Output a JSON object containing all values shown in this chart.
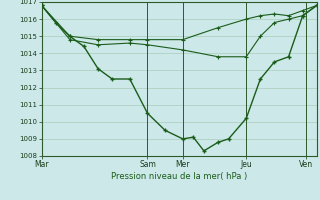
{
  "xlabel": "Pression niveau de la mer( hPa )",
  "bg_color": "#cce8e8",
  "grid_color": "#aaccbb",
  "line_color": "#1a5c1a",
  "ylim": [
    1008,
    1017
  ],
  "yticks": [
    1008,
    1009,
    1010,
    1011,
    1012,
    1013,
    1014,
    1015,
    1016,
    1017
  ],
  "xtick_labels": [
    "Mar",
    "Sam",
    "Mer",
    "Jeu",
    "Ven"
  ],
  "xtick_positions": [
    0,
    3.0,
    4.0,
    5.8,
    7.5
  ],
  "day_lines": [
    0,
    3.0,
    4.0,
    5.8,
    7.5
  ],
  "xlim": [
    0,
    7.8
  ],
  "series1_main": {
    "x": [
      0.0,
      0.4,
      0.8,
      1.2,
      1.6,
      2.0,
      2.5,
      3.0,
      3.5,
      4.0,
      4.3,
      4.6,
      5.0,
      5.3,
      5.8,
      6.2,
      6.6,
      7.0,
      7.4,
      7.8
    ],
    "y": [
      1016.8,
      1015.8,
      1015.0,
      1014.4,
      1013.1,
      1012.5,
      1012.5,
      1010.5,
      1009.5,
      1009.0,
      1009.1,
      1008.3,
      1008.8,
      1009.0,
      1010.2,
      1012.5,
      1013.5,
      1013.8,
      1016.2,
      1016.8
    ]
  },
  "series2_upper": {
    "x": [
      0.0,
      0.8,
      1.6,
      2.5,
      3.0,
      4.0,
      5.0,
      5.8,
      6.2,
      6.6,
      7.0,
      7.4,
      7.8
    ],
    "y": [
      1016.8,
      1015.0,
      1014.8,
      1014.8,
      1014.8,
      1014.8,
      1015.5,
      1016.0,
      1016.2,
      1016.3,
      1016.2,
      1016.5,
      1016.8
    ]
  },
  "series3_mid": {
    "x": [
      0.0,
      0.8,
      1.6,
      2.5,
      3.0,
      4.0,
      5.0,
      5.8,
      6.2,
      6.6,
      7.0,
      7.4,
      7.8
    ],
    "y": [
      1016.8,
      1014.8,
      1014.5,
      1014.6,
      1014.5,
      1014.2,
      1013.8,
      1013.8,
      1015.0,
      1015.8,
      1016.0,
      1016.2,
      1016.8
    ]
  }
}
